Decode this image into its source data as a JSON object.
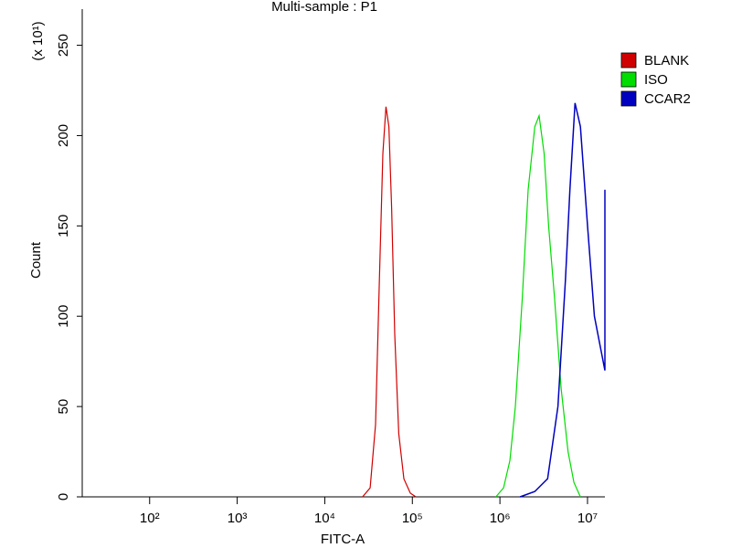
{
  "chart_data": {
    "type": "line",
    "title": "Multi-sample : P1",
    "x_label": "FITC-A",
    "y_label": "Count",
    "y_annotation": "(x 10¹)",
    "log_x": true,
    "xlim": [
      17,
      15800000
    ],
    "xticks": [
      {
        "value": 100,
        "label": "10²"
      },
      {
        "value": 1000,
        "label": "10³"
      },
      {
        "value": 10000,
        "label": "10⁴"
      },
      {
        "value": 100000,
        "label": "10⁵"
      },
      {
        "value": 1000000,
        "label": "10⁶"
      },
      {
        "value": 10000000,
        "label": "10⁷"
      }
    ],
    "ylim": [
      0,
      270
    ],
    "yticks": [
      0,
      50,
      100,
      150,
      200,
      250
    ],
    "legend": "right",
    "series": [
      {
        "name": "BLANK",
        "color": "#d00000",
        "x": [
          27000,
          33000,
          38000,
          42000,
          46000,
          50000,
          54000,
          58000,
          63000,
          70000,
          80000,
          95000,
          110000
        ],
        "values": [
          0,
          5,
          40,
          120,
          190,
          216,
          205,
          160,
          90,
          35,
          10,
          2,
          0
        ]
      },
      {
        "name": "ISO",
        "color": "#00dd00",
        "x": [
          900000,
          1100000,
          1300000,
          1500000,
          1800000,
          2100000,
          2500000,
          2800000,
          3200000,
          3600000,
          4200000,
          5000000,
          6000000,
          7000000,
          8300000
        ],
        "values": [
          0,
          5,
          20,
          50,
          110,
          170,
          205,
          211,
          190,
          150,
          110,
          60,
          25,
          8,
          0
        ]
      },
      {
        "name": "CCAR2",
        "color": "#0000c0",
        "x": [
          1700000,
          2500000,
          3500000,
          4600000,
          5600000,
          6300000,
          7200000,
          8300000,
          10000000,
          12000000,
          15800000,
          15800000
        ],
        "values": [
          0,
          3,
          10,
          50,
          120,
          170,
          218,
          205,
          150,
          100,
          70,
          170
        ]
      }
    ]
  }
}
